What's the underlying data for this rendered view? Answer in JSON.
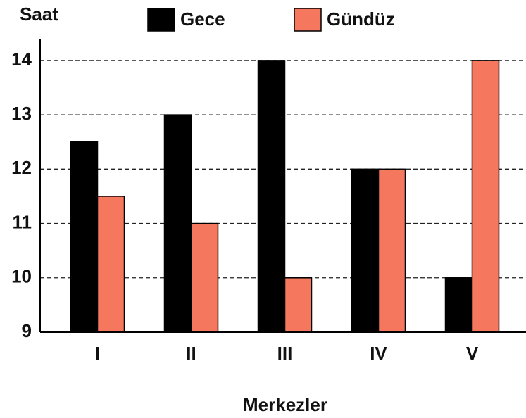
{
  "chart_data": {
    "type": "bar",
    "y_label": "Saat",
    "x_label": "Merkezler",
    "categories": [
      "I",
      "II",
      "III",
      "IV",
      "V"
    ],
    "series": [
      {
        "name": "Gece",
        "color": "#000000",
        "values": [
          12.5,
          13,
          14,
          12,
          10
        ]
      },
      {
        "name": "Gündüz",
        "color": "#f4775e",
        "values": [
          11.5,
          11,
          10,
          12,
          14
        ]
      }
    ],
    "ylim": [
      9,
      14.4
    ],
    "yticks": [
      9,
      10,
      11,
      12,
      13,
      14
    ],
    "grid": true
  }
}
